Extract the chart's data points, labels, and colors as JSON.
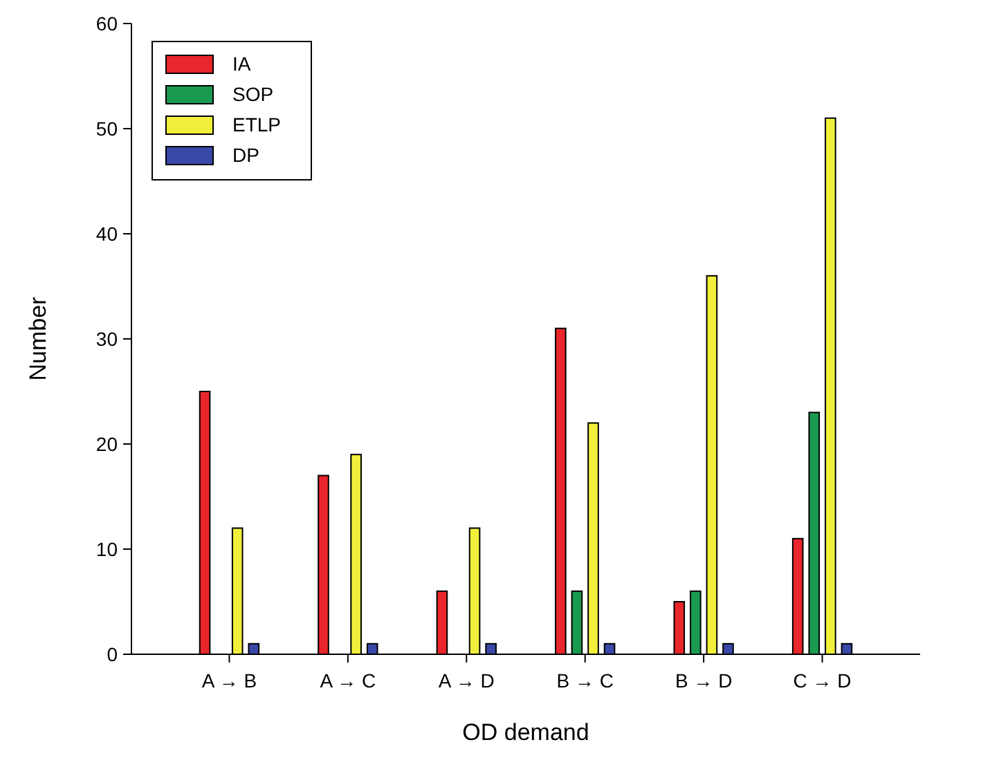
{
  "chart_data": {
    "type": "bar",
    "xlabel": "OD demand",
    "ylabel": "Number",
    "categories": [
      "A → B",
      "A → C",
      "A → D",
      "B → C",
      "B → D",
      "C → D"
    ],
    "series": [
      {
        "name": "IA",
        "color": "#e8262b",
        "values": [
          25,
          17,
          6,
          31,
          5,
          11
        ]
      },
      {
        "name": "SOP",
        "color": "#1a9a50",
        "values": [
          0,
          0,
          0,
          6,
          6,
          23
        ]
      },
      {
        "name": "ETLP",
        "color": "#f0f03c",
        "values": [
          12,
          19,
          12,
          22,
          36,
          51
        ]
      },
      {
        "name": "DP",
        "color": "#3a48a8",
        "values": [
          1,
          1,
          1,
          1,
          1,
          1
        ]
      }
    ],
    "ylim": [
      0,
      60
    ],
    "yticks": [
      0,
      10,
      20,
      30,
      40,
      50,
      60
    ],
    "legend": "top left",
    "grid": false
  }
}
